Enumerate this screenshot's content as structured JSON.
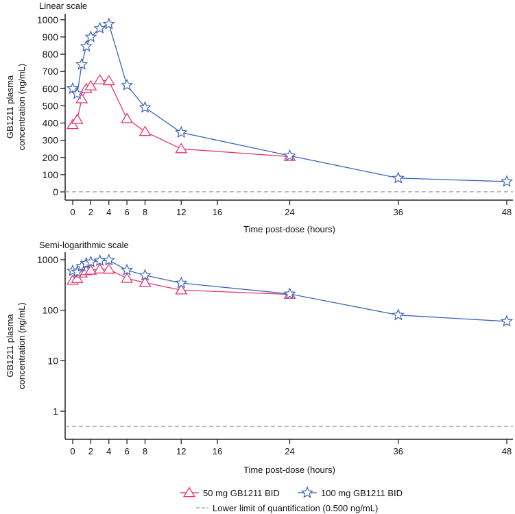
{
  "chart_data": [
    {
      "type": "line",
      "title": "Linear scale",
      "xlabel": "Time post-dose (hours)",
      "ylabel": [
        "GB1211 plasma",
        "concentration (ng/mL)"
      ],
      "yscale": "linear",
      "ylim": [
        0,
        1000
      ],
      "yticks": [
        0,
        100,
        200,
        300,
        400,
        500,
        600,
        700,
        800,
        900,
        1000
      ],
      "xlim": [
        0,
        48
      ],
      "xticks": [
        0,
        2,
        4,
        6,
        8,
        12,
        16,
        24,
        36,
        48
      ],
      "lloq": 0.5
    },
    {
      "type": "line",
      "title": "Semi-logarithmic scale",
      "xlabel": "Time post-dose (hours)",
      "ylabel": [
        "GB1211 plasma",
        "concentration (ng/mL)"
      ],
      "yscale": "log",
      "ylim": [
        0.3,
        1200
      ],
      "yticks": [
        1,
        10,
        100,
        1000
      ],
      "xlim": [
        0,
        48
      ],
      "xticks": [
        0,
        2,
        4,
        6,
        8,
        12,
        16,
        24,
        36,
        48
      ],
      "lloq": 0.5
    }
  ],
  "series": [
    {
      "name": "50 mg GB1211 BID",
      "color": "#e8336b",
      "marker": "triangle",
      "x": [
        0,
        0.5,
        1,
        1.5,
        2,
        3,
        4,
        6,
        8,
        12,
        24
      ],
      "y": [
        390,
        420,
        540,
        600,
        615,
        650,
        645,
        425,
        350,
        250,
        205
      ]
    },
    {
      "name": "100 mg GB1211 BID",
      "color": "#3a63b8",
      "marker": "star",
      "x": [
        0,
        0.5,
        1,
        1.5,
        2,
        3,
        4,
        6,
        8,
        12,
        24,
        36,
        48
      ],
      "y": [
        600,
        570,
        740,
        845,
        900,
        950,
        975,
        620,
        490,
        345,
        210,
        80,
        60
      ]
    }
  ],
  "legend": {
    "lloq_label": "Lower limit of quantification (0.500 ng/mL)",
    "lloq_color": "#999999",
    "placement": "bottom"
  }
}
